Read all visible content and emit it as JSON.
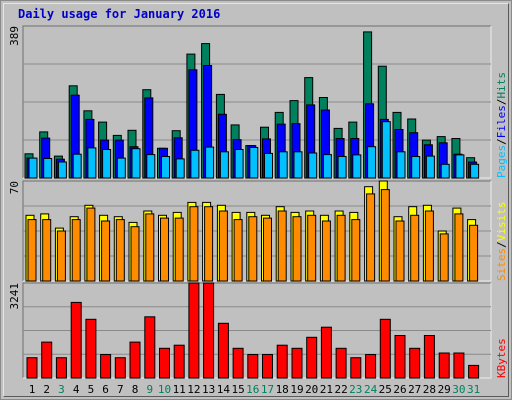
{
  "title": "Daily usage for January 2016",
  "colors": {
    "hits": "#00805c",
    "files": "#0000ff",
    "pages": "#00c0ff",
    "visits": "#ffff00",
    "sites": "#ff8c00",
    "kbytes": "#ff0000",
    "title": "#0000c8",
    "day_weekday": "#000000",
    "day_weekend": "#00805c",
    "background": "#c0c0c0"
  },
  "chart_data": [
    {
      "type": "bar",
      "name": "hits-files-pages",
      "categories": [
        "1",
        "2",
        "3",
        "4",
        "5",
        "6",
        "7",
        "8",
        "9",
        "10",
        "11",
        "12",
        "13",
        "14",
        "15",
        "16",
        "17",
        "18",
        "19",
        "20",
        "21",
        "22",
        "23",
        "24",
        "25",
        "26",
        "27",
        "28",
        "29",
        "30",
        "31"
      ],
      "ylabel_parts": [
        "Pages",
        "Files",
        "Hits"
      ],
      "ymax_label": "389",
      "ylim": [
        0,
        389
      ],
      "grid": true,
      "series": [
        {
          "name": "Hits",
          "color_key": "hits",
          "values": [
            62,
            118,
            56,
            236,
            172,
            143,
            109,
            122,
            226,
            76,
            121,
            317,
            344,
            214,
            136,
            83,
            130,
            168,
            198,
            257,
            206,
            127,
            143,
            374,
            286,
            168,
            151,
            97,
            106,
            101,
            52
          ]
        },
        {
          "name": "Files",
          "color_key": "files",
          "values": [
            51,
            102,
            48,
            212,
            150,
            97,
            97,
            80,
            205,
            76,
            103,
            277,
            288,
            163,
            98,
            83,
            100,
            138,
            139,
            187,
            174,
            101,
            101,
            190,
            150,
            124,
            116,
            85,
            90,
            61,
            41
          ]
        },
        {
          "name": "Pages",
          "color_key": "pages",
          "values": [
            51,
            50,
            41,
            61,
            77,
            73,
            51,
            75,
            60,
            55,
            49,
            71,
            79,
            67,
            73,
            78,
            63,
            67,
            67,
            64,
            60,
            55,
            59,
            80,
            144,
            67,
            55,
            56,
            35,
            59,
            35
          ]
        }
      ]
    },
    {
      "type": "bar",
      "name": "sites-visits",
      "categories": [
        "1",
        "2",
        "3",
        "4",
        "5",
        "6",
        "7",
        "8",
        "9",
        "10",
        "11",
        "12",
        "13",
        "14",
        "15",
        "16",
        "17",
        "18",
        "19",
        "20",
        "21",
        "22",
        "23",
        "24",
        "25",
        "26",
        "27",
        "28",
        "29",
        "30",
        "31"
      ],
      "ylabel_parts": [
        "Sites",
        "Visits"
      ],
      "ymax_label": "70",
      "ylim": [
        0,
        70
      ],
      "grid": true,
      "series": [
        {
          "name": "Visits",
          "color_key": "visits",
          "values": [
            46,
            47,
            37,
            45,
            53,
            46,
            45,
            41,
            49,
            46,
            48,
            55,
            55,
            53,
            48,
            48,
            46,
            52,
            48,
            49,
            46,
            49,
            48,
            66,
            70,
            45,
            52,
            53,
            35,
            51,
            43
          ]
        },
        {
          "name": "Sites",
          "color_key": "sites",
          "values": [
            43,
            43,
            35,
            43,
            51,
            42,
            43,
            38,
            47,
            44,
            44,
            52,
            52,
            49,
            43,
            45,
            44,
            49,
            45,
            46,
            42,
            46,
            43,
            61,
            64,
            42,
            46,
            49,
            33,
            47,
            39
          ]
        }
      ]
    },
    {
      "type": "bar",
      "name": "kbytes",
      "categories": [
        "1",
        "2",
        "3",
        "4",
        "5",
        "6",
        "7",
        "8",
        "9",
        "10",
        "11",
        "12",
        "13",
        "14",
        "15",
        "16",
        "17",
        "18",
        "19",
        "20",
        "21",
        "22",
        "23",
        "24",
        "25",
        "26",
        "27",
        "28",
        "29",
        "30",
        "31"
      ],
      "ylabel_parts": [
        "KBytes"
      ],
      "ymax_label": "3241",
      "ylim": [
        0,
        3241
      ],
      "grid": true,
      "series": [
        {
          "name": "KBytes",
          "color_key": "kbytes",
          "values": [
            693,
            1225,
            693,
            2578,
            2002,
            802,
            693,
            1225,
            2087,
            1013,
            1119,
            3241,
            3241,
            1865,
            1013,
            802,
            802,
            1119,
            1013,
            1388,
            1734,
            1013,
            693,
            802,
            2002,
            1451,
            1013,
            1451,
            853,
            853,
            430
          ]
        }
      ]
    }
  ],
  "x_labels": [
    {
      "text": "1",
      "weekend": false
    },
    {
      "text": "2",
      "weekend": false
    },
    {
      "text": "3",
      "weekend": true
    },
    {
      "text": "4",
      "weekend": false
    },
    {
      "text": "5",
      "weekend": false
    },
    {
      "text": "6",
      "weekend": false
    },
    {
      "text": "7",
      "weekend": false
    },
    {
      "text": "8",
      "weekend": false
    },
    {
      "text": "9",
      "weekend": true
    },
    {
      "text": "10",
      "weekend": true
    },
    {
      "text": "11",
      "weekend": false
    },
    {
      "text": "12",
      "weekend": false
    },
    {
      "text": "13",
      "weekend": false
    },
    {
      "text": "14",
      "weekend": false
    },
    {
      "text": "15",
      "weekend": false
    },
    {
      "text": "16",
      "weekend": true
    },
    {
      "text": "17",
      "weekend": true
    },
    {
      "text": "18",
      "weekend": false
    },
    {
      "text": "19",
      "weekend": false
    },
    {
      "text": "20",
      "weekend": false
    },
    {
      "text": "21",
      "weekend": false
    },
    {
      "text": "22",
      "weekend": false
    },
    {
      "text": "23",
      "weekend": true
    },
    {
      "text": "24",
      "weekend": true
    },
    {
      "text": "25",
      "weekend": false
    },
    {
      "text": "26",
      "weekend": false
    },
    {
      "text": "27",
      "weekend": false
    },
    {
      "text": "28",
      "weekend": false
    },
    {
      "text": "29",
      "weekend": false
    },
    {
      "text": "30",
      "weekend": true
    },
    {
      "text": "31",
      "weekend": true
    }
  ]
}
